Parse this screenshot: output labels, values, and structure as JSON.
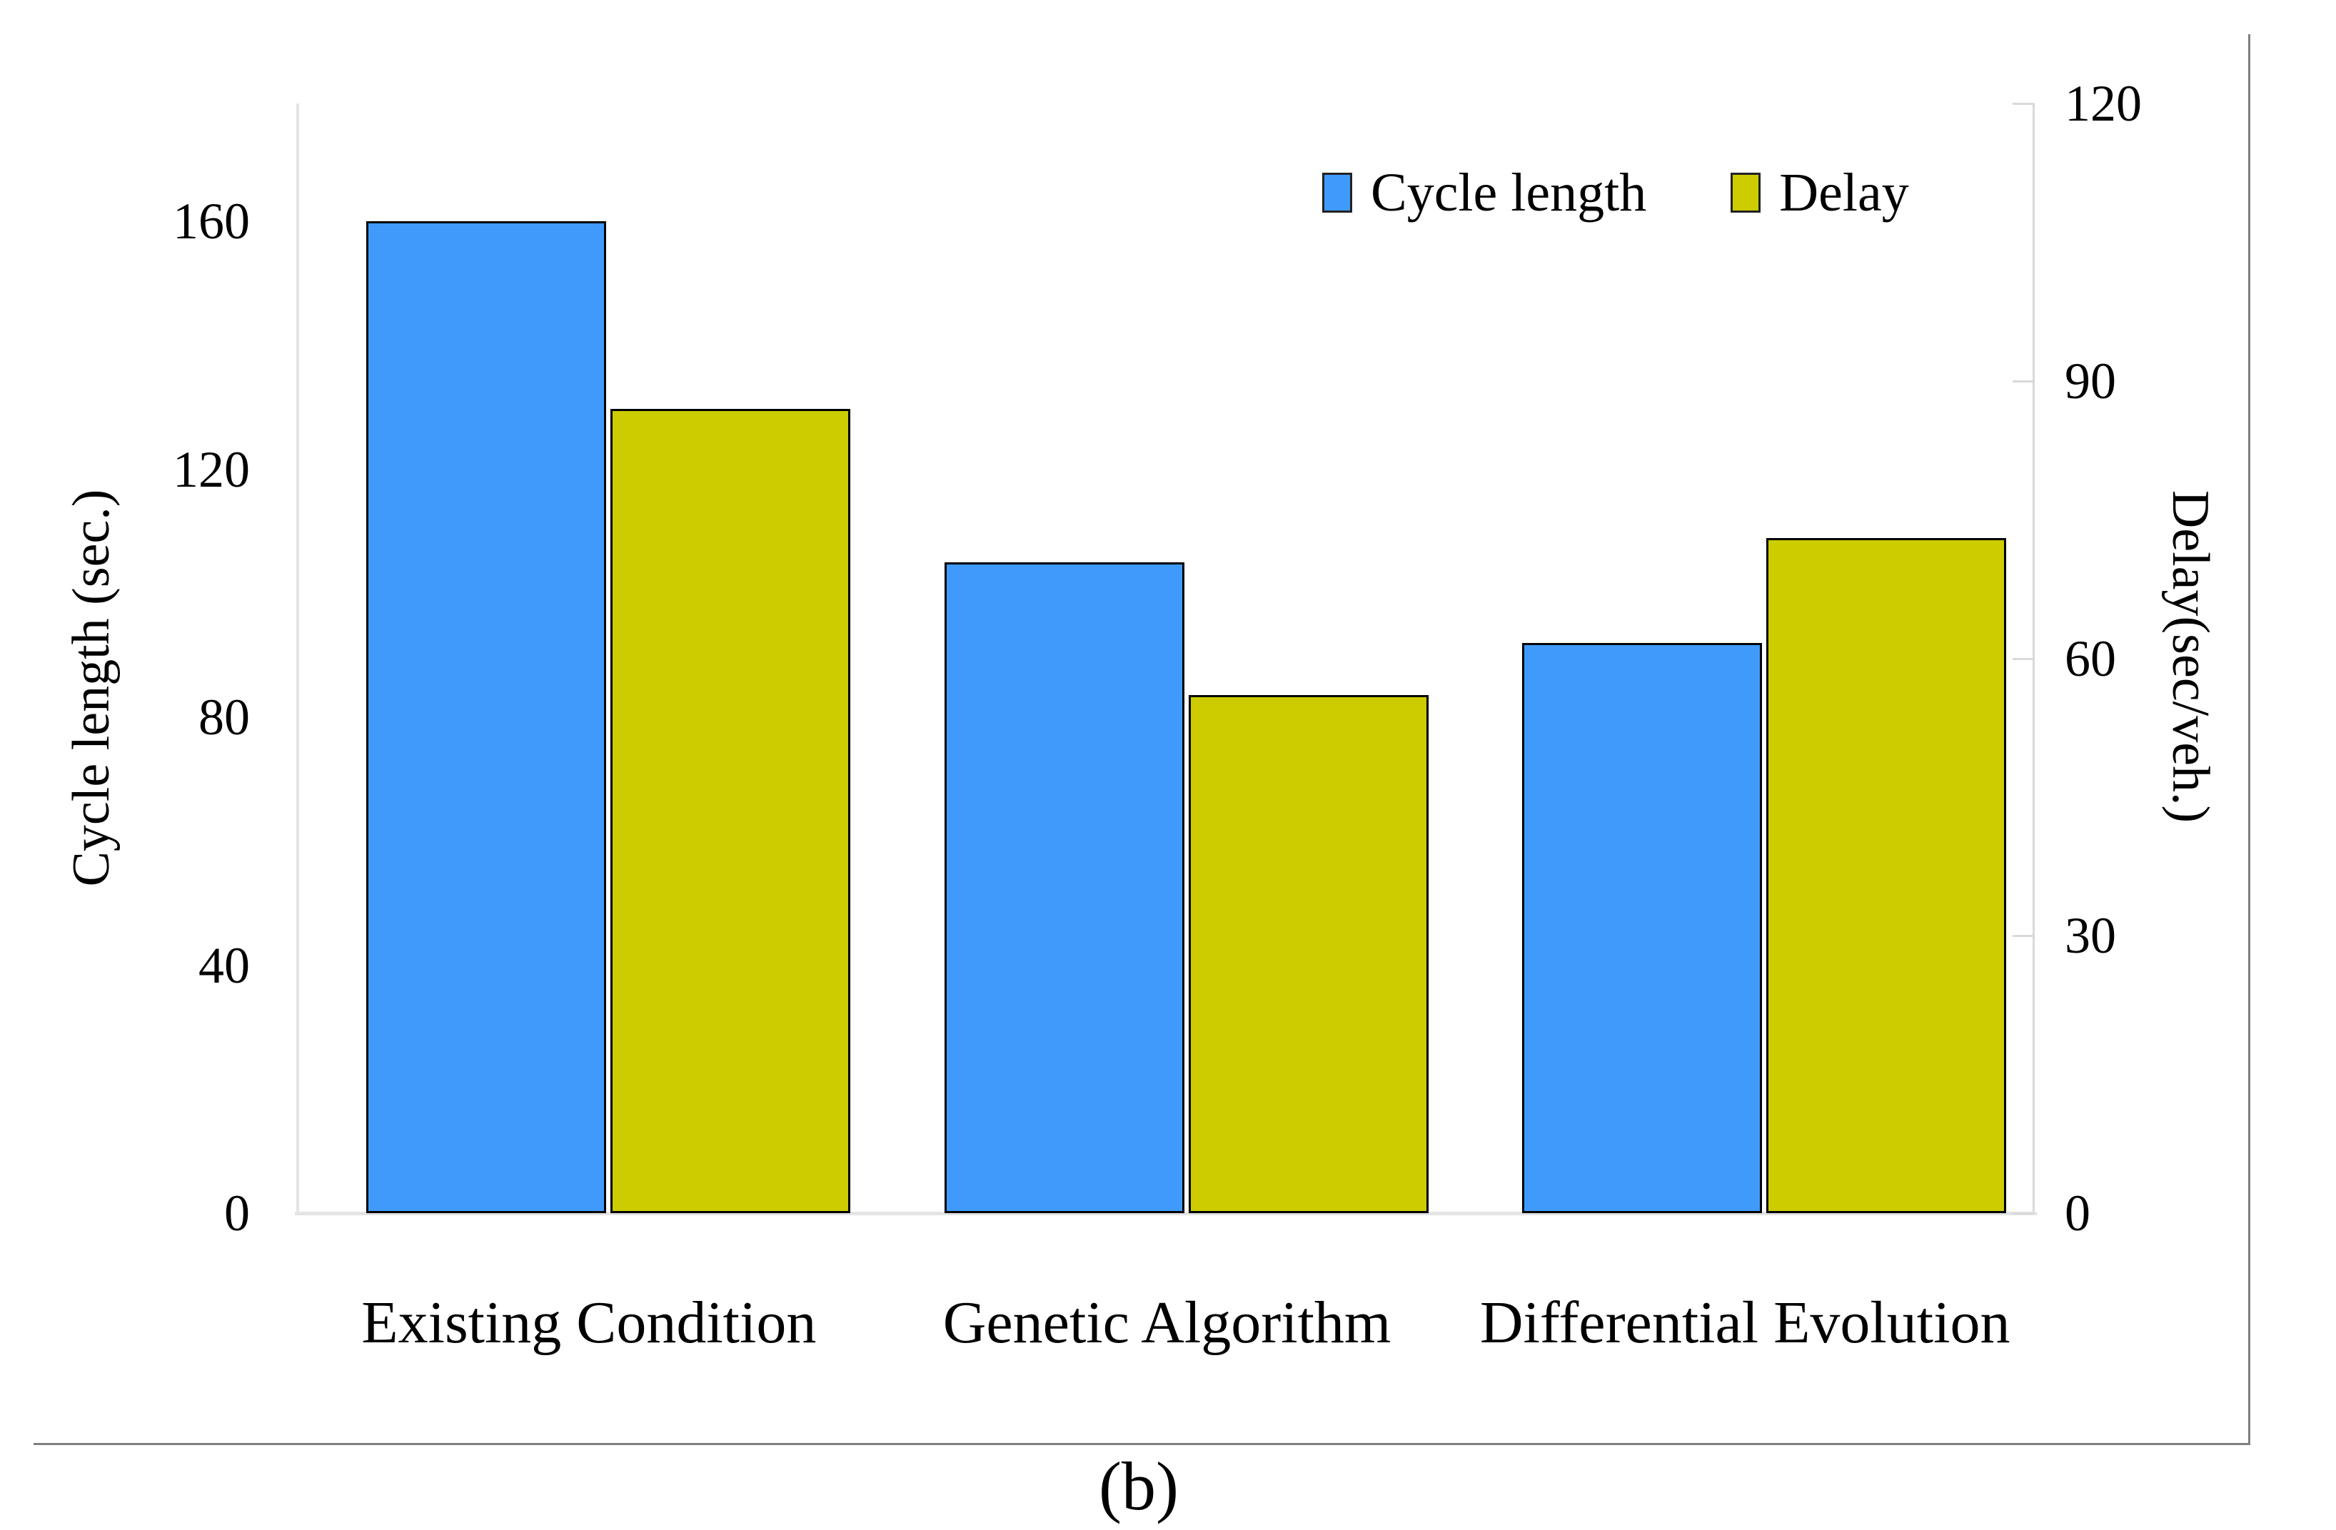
{
  "figure": {
    "caption": "(b)"
  },
  "chart_data": {
    "type": "bar",
    "title": "",
    "categories": [
      "Existing Condition",
      "Genetic Algorithm",
      "Differential Evolution"
    ],
    "series": [
      {
        "name": "Cycle length",
        "axis": "left",
        "color": "#409afc",
        "values": [
          160,
          105,
          92
        ]
      },
      {
        "name": "Delay",
        "axis": "right",
        "color": "#cccc00",
        "values": [
          87,
          56,
          73
        ]
      }
    ],
    "left_axis": {
      "title": "Cycle length (sec.)",
      "ticks": [
        0,
        40,
        80,
        120,
        160
      ],
      "range": [
        0,
        179
      ]
    },
    "right_axis": {
      "title": "Delay(sec/veh.)",
      "ticks": [
        0,
        30,
        60,
        90,
        120
      ],
      "range": [
        0,
        120
      ]
    },
    "legend": {
      "entries": [
        "Cycle length",
        "Delay"
      ],
      "position": "top-right-inside"
    },
    "grid": "off",
    "bar_border_color": "#000000",
    "axis_line_color": "#d9d9d9"
  }
}
